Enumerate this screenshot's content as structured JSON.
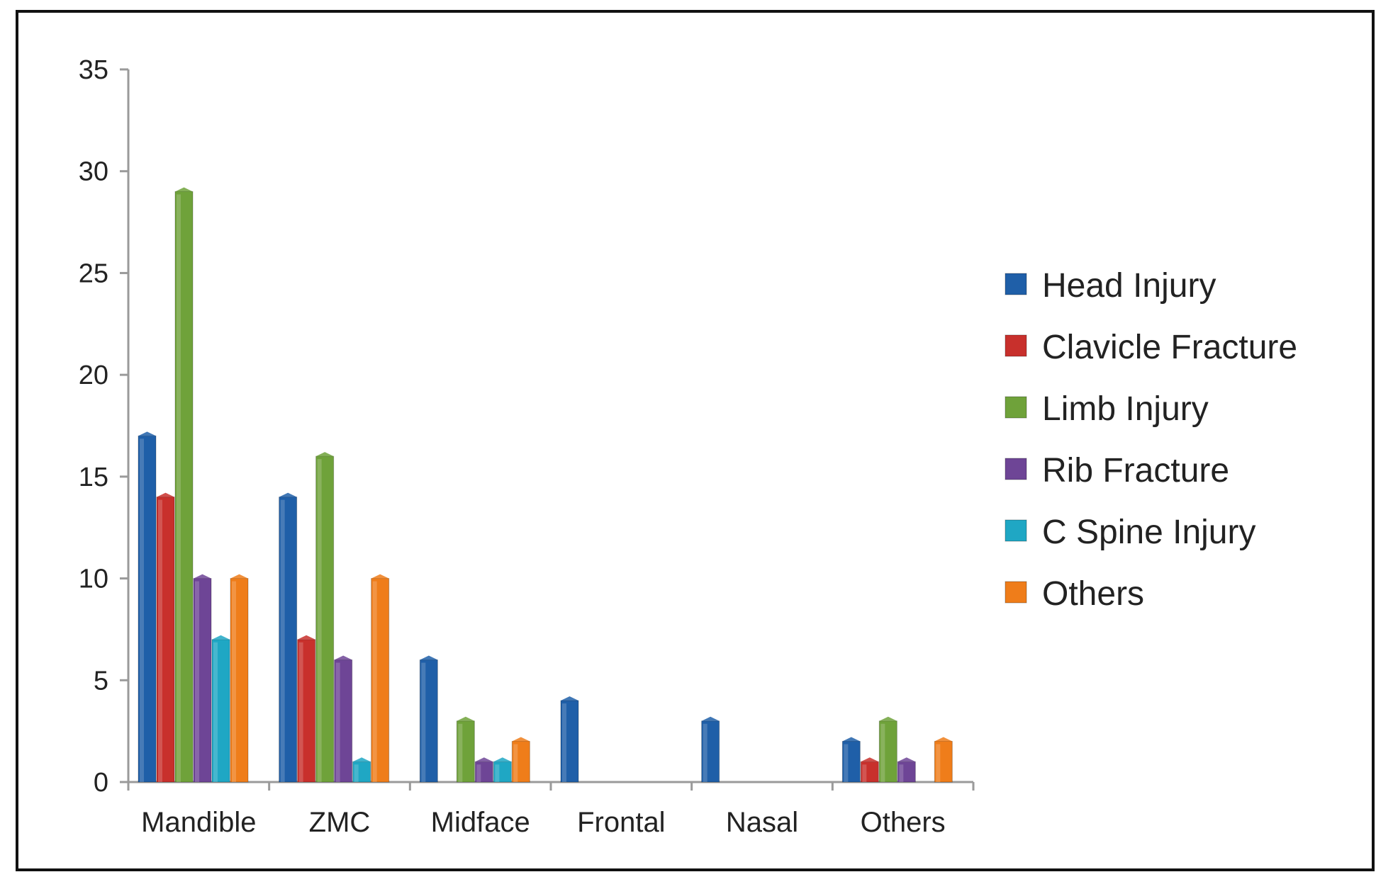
{
  "chart_data": {
    "type": "bar",
    "title": "",
    "xlabel": "",
    "ylabel": "",
    "ylim": [
      0,
      35
    ],
    "yticks": [
      0,
      5,
      10,
      15,
      20,
      25,
      30,
      35
    ],
    "grid": false,
    "legend_position": "right",
    "categories": [
      "Mandible",
      "ZMC",
      "Midface",
      "Frontal",
      "Nasal",
      "Others"
    ],
    "series": [
      {
        "name": "Head Injury",
        "color": "#1F5FA8",
        "values": [
          17,
          14,
          6,
          4,
          3,
          2
        ]
      },
      {
        "name": "Clavicle Fracture",
        "color": "#C8302C",
        "values": [
          14,
          7,
          0,
          0,
          0,
          1
        ]
      },
      {
        "name": "Limb Injury",
        "color": "#6FA23A",
        "values": [
          29,
          16,
          3,
          0,
          0,
          3
        ]
      },
      {
        "name": "Rib Fracture",
        "color": "#6E4596",
        "values": [
          10,
          6,
          1,
          0,
          0,
          1
        ]
      },
      {
        "name": "C Spine Injury",
        "color": "#1FA7C4",
        "values": [
          7,
          1,
          1,
          0,
          0,
          0
        ]
      },
      {
        "name": "Others",
        "color": "#EF7D1A",
        "values": [
          10,
          10,
          2,
          0,
          0,
          2
        ]
      }
    ]
  }
}
